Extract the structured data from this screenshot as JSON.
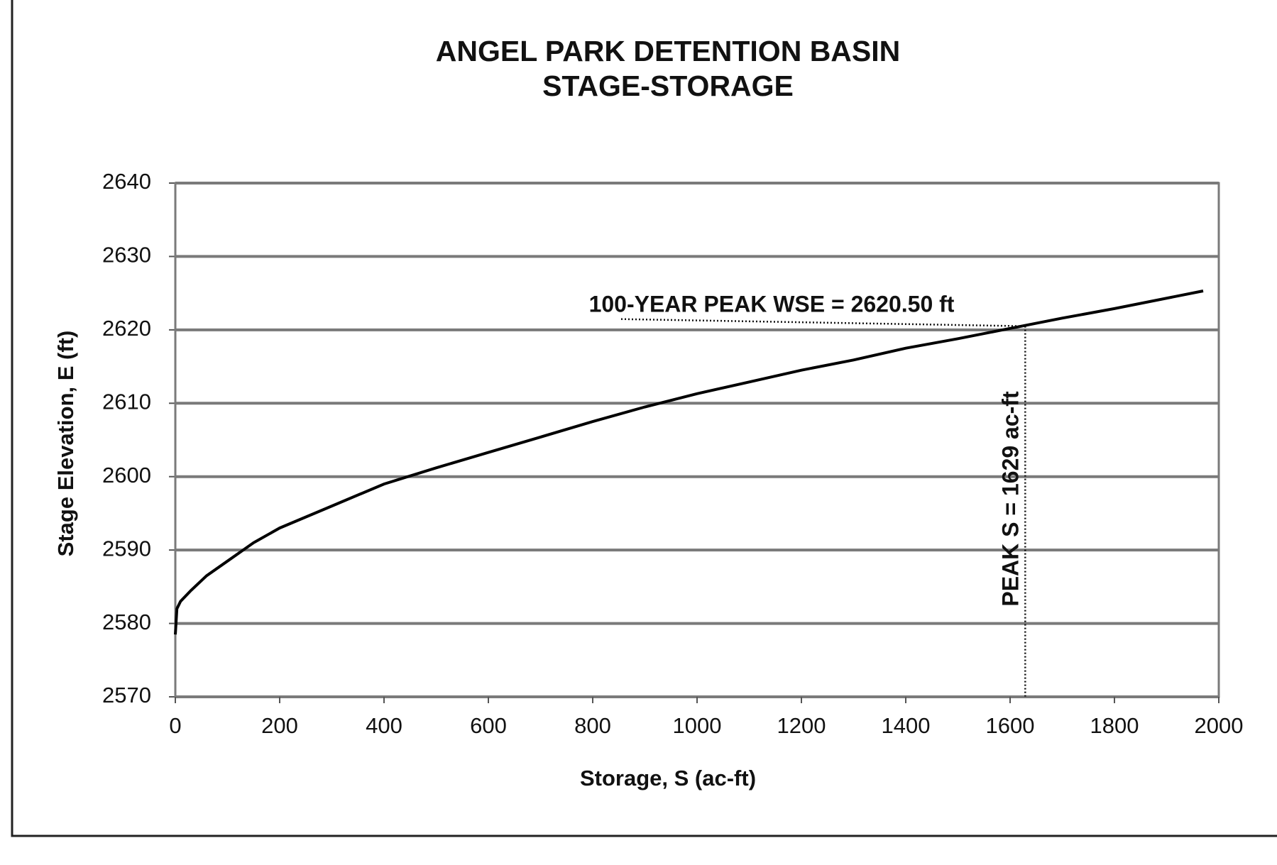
{
  "chart_data": {
    "type": "line",
    "title": [
      "ANGEL PARK DETENTION BASIN",
      "STAGE-STORAGE"
    ],
    "x_label": "Storage, S (ac-ft)",
    "y_label": "Stage Elevation, E (ft)",
    "x": [
      0,
      3,
      10,
      30,
      60,
      100,
      150,
      200,
      300,
      400,
      500,
      600,
      700,
      800,
      900,
      1000,
      1100,
      1200,
      1300,
      1400,
      1500,
      1600,
      1700,
      1800,
      1970
    ],
    "values": [
      2578.5,
      2582,
      2583,
      2584.5,
      2586.5,
      2588.5,
      2591,
      2593,
      2596,
      2599,
      2601.2,
      2603.3,
      2605.4,
      2607.5,
      2609.5,
      2611.3,
      2612.9,
      2614.5,
      2615.9,
      2617.5,
      2618.8,
      2620.2,
      2621.6,
      2622.9,
      2625.3
    ],
    "color": "#000000",
    "xlim": [
      0,
      2000
    ],
    "xticks": [
      0,
      200,
      400,
      600,
      800,
      1000,
      1200,
      1400,
      1600,
      1800,
      2000
    ],
    "ylim": [
      2570,
      2640
    ],
    "yticks": [
      2570,
      2580,
      2590,
      2600,
      2610,
      2620,
      2630,
      2640
    ],
    "grid": true,
    "annotations": {
      "wse_label": "100-YEAR PEAK WSE = 2620.50  ft",
      "storage_label": "PEAK S = 1629 ac-ft",
      "peak_x": 1629,
      "peak_y": 2620.5
    }
  }
}
